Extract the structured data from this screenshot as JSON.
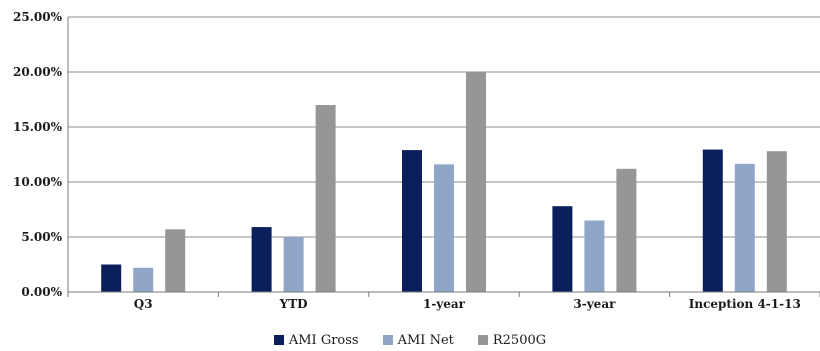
{
  "chart_data": {
    "type": "bar",
    "categories": [
      "Q3",
      "YTD",
      "1-year",
      "3-year",
      "Inception 4-1-13"
    ],
    "series": [
      {
        "name": "AMI Gross",
        "values": [
          2.5,
          5.9,
          12.9,
          7.8,
          12.95
        ],
        "color": "#0b1f5c"
      },
      {
        "name": "AMI Net",
        "values": [
          2.2,
          5.0,
          11.6,
          6.5,
          11.65
        ],
        "color": "#8fa6c9"
      },
      {
        "name": "R2500G",
        "values": [
          5.7,
          17.0,
          20.0,
          11.2,
          12.8
        ],
        "color": "#969696"
      }
    ],
    "ylim": [
      0,
      25
    ],
    "yticks": [
      "0.00%",
      "5.00%",
      "10.00%",
      "15.00%",
      "20.00%",
      "25.00%"
    ],
    "grid": true,
    "legend_position": "bottom"
  }
}
